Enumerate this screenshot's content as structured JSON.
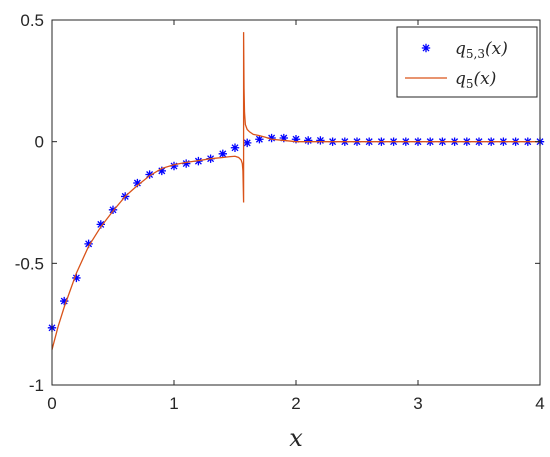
{
  "chart_data": {
    "type": "line",
    "xlabel": "x",
    "ylabel": "",
    "title": "",
    "xlim": [
      0,
      4
    ],
    "ylim": [
      -1,
      0.5
    ],
    "xticks": [
      "0",
      "1",
      "2",
      "3",
      "4"
    ],
    "yticks": [
      "-1",
      "-0.5",
      "0",
      "0.5"
    ],
    "grid": false,
    "legend_position": "top-right",
    "series": [
      {
        "name": "q5,3(x)",
        "legend_base": "q",
        "legend_sub": "5,3",
        "legend_tail": "(x)",
        "style": "markers-asterisk",
        "color": "#0000ff",
        "x": [
          0,
          0.1,
          0.2,
          0.3,
          0.4,
          0.5,
          0.6,
          0.7,
          0.8,
          0.9,
          1.0,
          1.1,
          1.2,
          1.3,
          1.4,
          1.5,
          1.6,
          1.7,
          1.8,
          1.9,
          2.0,
          2.1,
          2.2,
          2.3,
          2.4,
          2.5,
          2.6,
          2.7,
          2.8,
          2.9,
          3.0,
          3.1,
          3.2,
          3.3,
          3.4,
          3.5,
          3.6,
          3.7,
          3.8,
          3.9,
          4.0
        ],
        "y": [
          -0.765,
          -0.655,
          -0.56,
          -0.42,
          -0.34,
          -0.28,
          -0.225,
          -0.17,
          -0.135,
          -0.12,
          -0.1,
          -0.09,
          -0.08,
          -0.07,
          -0.05,
          -0.025,
          -0.005,
          0.01,
          0.015,
          0.015,
          0.01,
          0.005,
          0.005,
          0.0,
          0.0,
          0.0,
          0.0,
          0.0,
          0.0,
          0.0,
          0.0,
          0.0,
          0.0,
          0.0,
          0.0,
          0.0,
          0.0,
          0.0,
          0.0,
          0.0,
          0.0
        ]
      },
      {
        "name": "q5(x)",
        "legend_base": "q",
        "legend_sub": "5",
        "legend_tail": "(x)",
        "style": "line",
        "color": "#d95319",
        "x": [
          0,
          0.05,
          0.1,
          0.15,
          0.2,
          0.3,
          0.4,
          0.5,
          0.6,
          0.7,
          0.8,
          0.9,
          1.0,
          1.1,
          1.2,
          1.3,
          1.4,
          1.45,
          1.5,
          1.53,
          1.55,
          1.56,
          1.565,
          1.5705,
          1.5705,
          1.574,
          1.578,
          1.585,
          1.6,
          1.62,
          1.65,
          1.7,
          1.75,
          1.8,
          1.9,
          2.0,
          2.1,
          2.2,
          2.4,
          2.6,
          3.0,
          3.5,
          4.0
        ],
        "y": [
          -0.855,
          -0.76,
          -0.68,
          -0.61,
          -0.54,
          -0.43,
          -0.35,
          -0.285,
          -0.225,
          -0.18,
          -0.14,
          -0.11,
          -0.095,
          -0.085,
          -0.078,
          -0.07,
          -0.065,
          -0.062,
          -0.06,
          -0.065,
          -0.075,
          -0.09,
          -0.12,
          -0.25,
          0.45,
          0.22,
          0.12,
          0.07,
          0.05,
          0.04,
          0.03,
          0.025,
          0.018,
          0.01,
          0.005,
          0.0,
          0.0,
          0.0,
          0.0,
          0.0,
          0.0,
          0.0,
          0.0
        ]
      }
    ]
  }
}
